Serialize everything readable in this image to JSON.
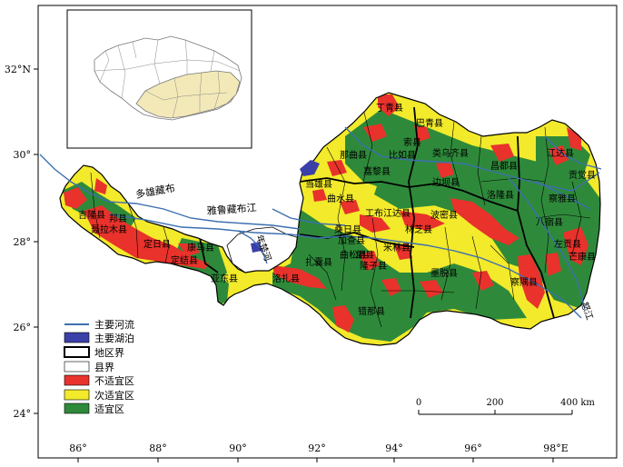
{
  "axes": {
    "lat_labels": [
      "32°N",
      "30°",
      "28°",
      "26°",
      "24°"
    ],
    "lon_labels": [
      "86°",
      "88°",
      "90°",
      "92°",
      "94°",
      "96°",
      "98°E"
    ]
  },
  "rivers": {
    "duoxiong": "多雄藏布",
    "yarlung": "雅鲁藏布江",
    "nianchu": "年楚河",
    "nujiang": "怒江"
  },
  "counties": {
    "dingqing": "丁青县",
    "basu": "巴青县",
    "suoxian": "索县",
    "nierong": "那曲县",
    "biru": "比如县",
    "leiwuqi": "类乌齐县",
    "changdu": "昌都县",
    "luolong": "洛隆县",
    "bianba": "边坝县",
    "jiangda": "江达县",
    "gongjue": "贡觉县",
    "chaya": "察雅县",
    "basu2": "八宿县",
    "mangkang": "芒康县",
    "zuogong": "左贡县",
    "dangxiong": "当雄县",
    "jiali": "嘉黎县",
    "gongbujiangda": "工布江达县",
    "bomi": "波密县",
    "linzhi": "林芝县",
    "milin": "米林县",
    "longzi": "隆子县",
    "cuona": "错那县",
    "jiacha": "加查县",
    "langxian": "朗县",
    "chayu": "察隅县",
    "motuo": "墨脱县",
    "jilong": "吉隆县",
    "nielamu": "聂拉木县",
    "dingri": "定日县",
    "dingjie": "定结县",
    "yadong": "亚东县",
    "kangma": "康马县",
    "luozha": "洛扎县",
    "zhanang": "扎囊县",
    "qushui": "曲水县",
    "sangri": "桑日县",
    "qusong": "曲松县",
    "bangxian": "邦县"
  },
  "legend": {
    "items": [
      {
        "label": "主要河流",
        "kind": "line",
        "color": "#3d6fb0"
      },
      {
        "label": "主要湖泊",
        "kind": "fill",
        "color": "#3b3fa8"
      },
      {
        "label": "地区界",
        "kind": "thick-box",
        "color": "#ffffff"
      },
      {
        "label": "县界",
        "kind": "thin-box",
        "color": "#ffffff"
      },
      {
        "label": "不适宜区",
        "kind": "fill",
        "color": "#e8322b"
      },
      {
        "label": "次适宜区",
        "kind": "fill",
        "color": "#f2ea2a"
      },
      {
        "label": "适宜区",
        "kind": "fill",
        "color": "#2e8a3a"
      }
    ]
  },
  "scalebar": {
    "labels": [
      "0",
      "200",
      "400 km"
    ]
  },
  "colors": {
    "unsuitable": "#e8322b",
    "sub_suitable": "#f2ea2a",
    "suitable": "#2e8a3a",
    "river": "#3d6fb0",
    "lake": "#3b3fa8",
    "inset_highlight": "#f3e9b8"
  }
}
